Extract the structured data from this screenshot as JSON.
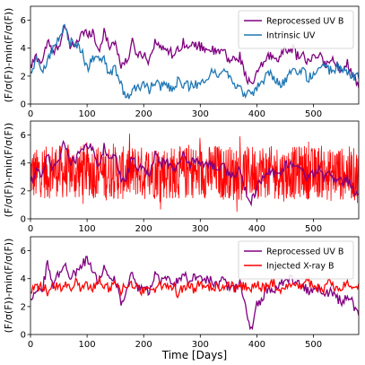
{
  "chart_data": [
    {
      "type": "line",
      "title": "",
      "xlabel": "",
      "ylabel": "(F/σ(F))-min(F/σ(F))",
      "xlim": [
        0,
        580
      ],
      "ylim": [
        0,
        7
      ],
      "xticks": [
        0,
        100,
        200,
        300,
        400,
        500
      ],
      "yticks": [
        0,
        2,
        4,
        6
      ],
      "legend_position": "upper-right",
      "series": [
        {
          "name": "Reprocessed UV B",
          "color": "#800080",
          "x": [
            0,
            10,
            20,
            30,
            40,
            50,
            60,
            70,
            80,
            90,
            100,
            110,
            120,
            130,
            140,
            150,
            160,
            170,
            180,
            190,
            200,
            210,
            220,
            230,
            240,
            250,
            260,
            270,
            280,
            290,
            300,
            310,
            320,
            330,
            340,
            350,
            360,
            370,
            380,
            390,
            400,
            410,
            420,
            430,
            440,
            450,
            460,
            470,
            480,
            490,
            500,
            510,
            520,
            530,
            540,
            550,
            560,
            570,
            580
          ],
          "y": [
            2.6,
            3.4,
            3.0,
            4.5,
            3.6,
            4.2,
            5.6,
            4.1,
            4.3,
            5.0,
            5.1,
            5.2,
            3.8,
            5.1,
            4.2,
            4.4,
            2.8,
            3.0,
            4.4,
            3.5,
            3.6,
            3.1,
            4.6,
            3.9,
            4.1,
            3.6,
            3.8,
            4.5,
            3.9,
            4.3,
            4.1,
            4.0,
            3.9,
            3.6,
            3.9,
            3.1,
            3.2,
            3.4,
            2.1,
            1.2,
            2.2,
            2.8,
            3.5,
            3.3,
            3.4,
            3.8,
            4.1,
            3.5,
            3.5,
            3.0,
            3.2,
            3.6,
            2.8,
            3.2,
            2.8,
            2.6,
            2.9,
            2.0,
            1.5
          ]
        },
        {
          "name": "Intrinsic UV",
          "color": "#1f77b4",
          "x": [
            0,
            10,
            20,
            30,
            40,
            50,
            60,
            70,
            80,
            90,
            100,
            110,
            120,
            130,
            140,
            150,
            160,
            170,
            180,
            190,
            200,
            210,
            220,
            230,
            240,
            250,
            260,
            270,
            280,
            290,
            300,
            310,
            320,
            330,
            340,
            350,
            360,
            370,
            380,
            390,
            400,
            410,
            420,
            430,
            440,
            450,
            460,
            470,
            480,
            490,
            500,
            510,
            520,
            530,
            540,
            550,
            560,
            570,
            580
          ],
          "y": [
            2.1,
            3.2,
            2.4,
            3.2,
            4.0,
            4.6,
            5.7,
            4.4,
            4.3,
            3.9,
            2.5,
            3.4,
            3.1,
            3.1,
            2.1,
            2.6,
            1.3,
            0.4,
            0.9,
            1.2,
            1.4,
            1.0,
            1.6,
            1.2,
            1.4,
            1.1,
            1.6,
            1.4,
            1.3,
            1.5,
            1.3,
            2.0,
            2.2,
            2.1,
            2.6,
            2.1,
            1.2,
            1.2,
            0.6,
            0.7,
            1.1,
            1.6,
            2.1,
            2.0,
            1.4,
            1.6,
            2.2,
            2.3,
            2.5,
            1.8,
            2.2,
            2.7,
            2.6,
            2.4,
            2.6,
            2.5,
            2.2,
            2.0,
            2.0
          ]
        }
      ]
    },
    {
      "type": "line",
      "title": "",
      "xlabel": "",
      "ylabel": "(F/σ(F))-min(F/σ(F))",
      "xlim": [
        0,
        580
      ],
      "ylim": [
        0,
        7
      ],
      "xticks": [
        0,
        100,
        200,
        300,
        400,
        500
      ],
      "yticks": [
        0,
        2,
        4,
        6
      ],
      "series": [
        {
          "color": "#ff0000",
          "noise_band": {
            "center": 3.3,
            "low": 0.5,
            "high": 6.5,
            "mean_amplitude": 1.2
          },
          "x": [
            0,
            10,
            20,
            30,
            40,
            50,
            60,
            70,
            80,
            90,
            100,
            110,
            120,
            130,
            140,
            150,
            160,
            170,
            180,
            190,
            200,
            210,
            220,
            230,
            240,
            250,
            260,
            270,
            280,
            290,
            300,
            310,
            320,
            330,
            340,
            350,
            360,
            370,
            380,
            390,
            400,
            410,
            420,
            430,
            440,
            450,
            460,
            470,
            480,
            490,
            500,
            510,
            520,
            530,
            540,
            550,
            560,
            570,
            580
          ],
          "y": [
            3.3,
            3.1,
            3.5,
            3.2,
            3.6,
            3.4,
            3.3,
            3.5,
            3.2,
            3.4,
            3.6,
            3.3,
            3.5,
            3.1,
            3.4,
            3.3,
            3.2,
            3.4,
            3.3,
            3.5,
            3.2,
            3.4,
            3.3,
            3.6,
            3.2,
            3.3,
            3.4,
            3.1,
            3.5,
            3.3,
            3.2,
            3.4,
            3.3,
            3.5,
            3.2,
            3.4,
            3.1,
            3.3,
            3.2,
            3.4,
            3.3,
            3.5,
            3.2,
            3.4,
            3.3,
            3.1,
            3.4,
            3.2,
            3.5,
            3.3,
            3.2,
            3.4,
            3.3,
            3.1,
            3.4,
            3.2,
            3.3,
            3.2,
            3.0
          ]
        },
        {
          "color": "#800080",
          "x": [
            0,
            10,
            20,
            30,
            40,
            50,
            60,
            70,
            80,
            90,
            100,
            110,
            120,
            130,
            140,
            150,
            160,
            170,
            180,
            190,
            200,
            210,
            220,
            230,
            240,
            250,
            260,
            270,
            280,
            290,
            300,
            310,
            320,
            330,
            340,
            350,
            360,
            370,
            380,
            390,
            400,
            410,
            420,
            430,
            440,
            450,
            460,
            470,
            480,
            490,
            500,
            510,
            520,
            530,
            540,
            550,
            560,
            570,
            580
          ],
          "y": [
            2.6,
            3.4,
            3.0,
            4.5,
            3.6,
            4.2,
            5.6,
            4.1,
            4.3,
            5.0,
            5.1,
            5.2,
            3.8,
            5.1,
            4.2,
            4.4,
            2.8,
            3.0,
            4.4,
            3.5,
            3.6,
            3.1,
            4.6,
            3.9,
            4.1,
            3.6,
            3.8,
            4.5,
            3.9,
            4.3,
            4.1,
            4.0,
            3.9,
            3.6,
            3.9,
            3.1,
            3.2,
            3.4,
            2.1,
            1.2,
            2.2,
            2.8,
            3.5,
            3.3,
            3.4,
            3.8,
            4.1,
            3.5,
            3.5,
            3.0,
            3.2,
            3.6,
            2.8,
            3.2,
            2.8,
            2.6,
            2.9,
            2.0,
            1.5
          ]
        }
      ]
    },
    {
      "type": "line",
      "title": "",
      "xlabel": "Time [Days]",
      "ylabel": "(F/σ(F))-min(F/σ(F))",
      "xlim": [
        0,
        580
      ],
      "ylim": [
        0,
        7
      ],
      "xticks": [
        0,
        100,
        200,
        300,
        400,
        500
      ],
      "yticks": [
        0,
        2,
        4,
        6
      ],
      "legend_position": "upper-right",
      "series": [
        {
          "name": "Reprocessed UV B",
          "color": "#800080",
          "x": [
            0,
            10,
            20,
            30,
            40,
            50,
            60,
            70,
            80,
            90,
            100,
            110,
            120,
            130,
            140,
            150,
            160,
            170,
            180,
            190,
            200,
            210,
            220,
            230,
            240,
            250,
            260,
            270,
            280,
            290,
            300,
            310,
            320,
            330,
            340,
            350,
            360,
            370,
            380,
            390,
            400,
            410,
            420,
            430,
            440,
            450,
            460,
            470,
            480,
            490,
            500,
            510,
            520,
            530,
            540,
            550,
            560,
            570,
            580
          ],
          "y": [
            2.5,
            3.4,
            3.0,
            5.1,
            3.6,
            4.4,
            4.9,
            4.2,
            4.5,
            4.9,
            5.4,
            4.7,
            3.7,
            4.9,
            4.2,
            3.9,
            2.4,
            3.1,
            4.4,
            3.2,
            3.4,
            3.0,
            4.3,
            3.8,
            4.1,
            3.5,
            3.8,
            4.3,
            4.0,
            4.2,
            4.1,
            4.0,
            3.9,
            3.5,
            4.1,
            3.3,
            3.2,
            3.6,
            2.1,
            0.2,
            2.2,
            2.6,
            3.4,
            3.0,
            3.5,
            3.8,
            4.0,
            3.6,
            3.6,
            3.1,
            3.2,
            3.4,
            2.9,
            3.1,
            2.6,
            2.4,
            2.8,
            2.2,
            1.4
          ]
        },
        {
          "name": "Injected X-ray B",
          "color": "#ff0000",
          "x": [
            0,
            10,
            20,
            30,
            40,
            50,
            60,
            70,
            80,
            90,
            100,
            110,
            120,
            130,
            140,
            150,
            160,
            170,
            180,
            190,
            200,
            210,
            220,
            230,
            240,
            250,
            260,
            270,
            280,
            290,
            300,
            310,
            320,
            330,
            340,
            350,
            360,
            370,
            380,
            390,
            400,
            410,
            420,
            430,
            440,
            450,
            460,
            470,
            480,
            490,
            500,
            510,
            520,
            530,
            540,
            550,
            560,
            570,
            580
          ],
          "y": [
            3.0,
            3.3,
            3.5,
            3.1,
            3.8,
            3.2,
            3.6,
            3.4,
            3.7,
            3.3,
            3.5,
            3.2,
            3.9,
            3.4,
            3.3,
            3.6,
            3.2,
            3.4,
            3.5,
            3.3,
            3.1,
            3.4,
            3.2,
            3.6,
            3.3,
            3.5,
            3.0,
            3.4,
            3.6,
            3.2,
            3.8,
            3.3,
            3.5,
            3.4,
            3.2,
            3.6,
            3.3,
            3.5,
            3.4,
            3.2,
            3.6,
            3.3,
            3.4,
            3.7,
            3.2,
            3.5,
            3.3,
            3.6,
            3.4,
            3.9,
            3.3,
            3.5,
            3.2,
            3.8,
            3.4,
            3.3,
            3.6,
            3.1,
            3.4
          ]
        }
      ]
    }
  ]
}
